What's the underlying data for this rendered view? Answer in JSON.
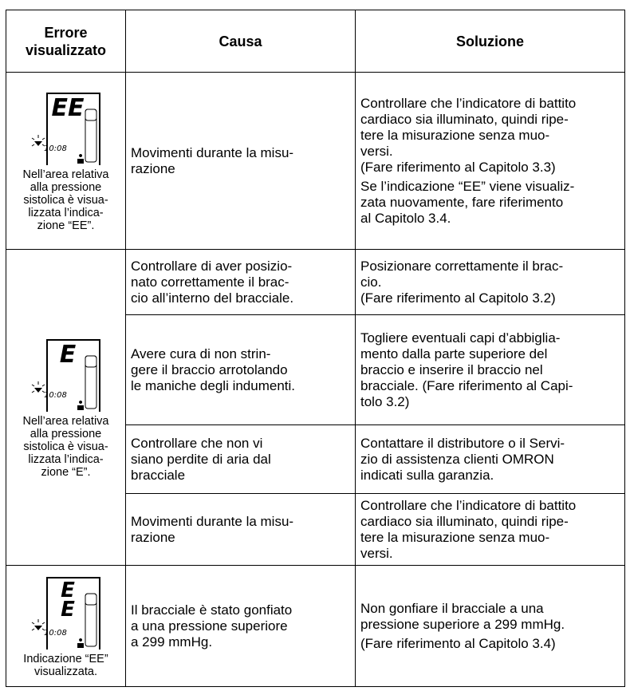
{
  "table": {
    "headers": [
      [
        "Errore",
        "visualizzato"
      ],
      [
        "Causa"
      ],
      [
        "Soluzione"
      ]
    ],
    "rows": [
      {
        "display": [
          "EE"
        ],
        "time": "10:08",
        "caption": [
          "Nell’area relativa",
          "alla pressione",
          "sistolica è visua-",
          "lizzata l’indica-",
          "zione “EE”."
        ],
        "entries": [
          {
            "cause": [
              "Movimenti durante la misu-",
              "razione"
            ],
            "solution": [
              [
                "Controllare che l’indicatore di battito",
                "cardiaco sia illuminato, quindi ripe-",
                "tere la misurazione senza muo-",
                "versi.",
                "(Fare riferimento al Capitolo 3.3)"
              ],
              [
                "Se l’indicazione “EE” viene visualiz-",
                "zata nuovamente, fare riferimento",
                "al Capitolo 3.4."
              ]
            ]
          }
        ]
      },
      {
        "display": [
          "E"
        ],
        "time": "10:08",
        "caption": [
          "Nell’area relativa",
          "alla pressione",
          "sistolica è visua-",
          "lizzata l’indica-",
          "zione “E”."
        ],
        "entries": [
          {
            "cause": [
              "Controllare di aver posizio-",
              "nato correttamente il brac-",
              "cio all’interno del bracciale."
            ],
            "solution": [
              [
                "Posizionare correttamente il brac-",
                "cio.",
                "(Fare riferimento al Capitolo 3.2)"
              ]
            ]
          },
          {
            "cause": [
              "Avere cura di non strin-",
              "gere il braccio arrotolando",
              "le maniche degli indumenti."
            ],
            "solution": [
              [
                "Togliere eventuali capi d’abbiglia-",
                "mento dalla parte superiore del",
                "braccio e inserire il braccio nel",
                "bracciale. (Fare riferimento al Capi-",
                "tolo 3.2)"
              ]
            ]
          },
          {
            "cause": [
              "Controllare che non vi",
              "siano perdite di aria dal",
              "bracciale"
            ],
            "solution": [
              [
                "Contattare il distributore o il Servi-",
                "zio di assistenza clienti OMRON",
                "indicati sulla garanzia."
              ]
            ]
          },
          {
            "cause": [
              "Movimenti durante la misu-",
              "razione"
            ],
            "solution": [
              [
                "Controllare che l’indicatore di battito",
                "cardiaco sia illuminato, quindi ripe-",
                "tere la misurazione senza muo-",
                "versi."
              ]
            ]
          }
        ]
      },
      {
        "display": [
          "E",
          "E"
        ],
        "time": "10:08",
        "caption": [
          "Indicazione “EE”",
          "visualizzata."
        ],
        "entries": [
          {
            "cause": [
              "Il bracciale è stato gonfiato",
              "a una pressione superiore",
              "a 299 mmHg."
            ],
            "solution": [
              [
                "Non gonfiare il bracciale a una",
                "pressione superiore a 299 mmHg."
              ],
              [
                "(Fare riferimento al Capitolo 3.4)"
              ]
            ]
          }
        ]
      }
    ]
  }
}
